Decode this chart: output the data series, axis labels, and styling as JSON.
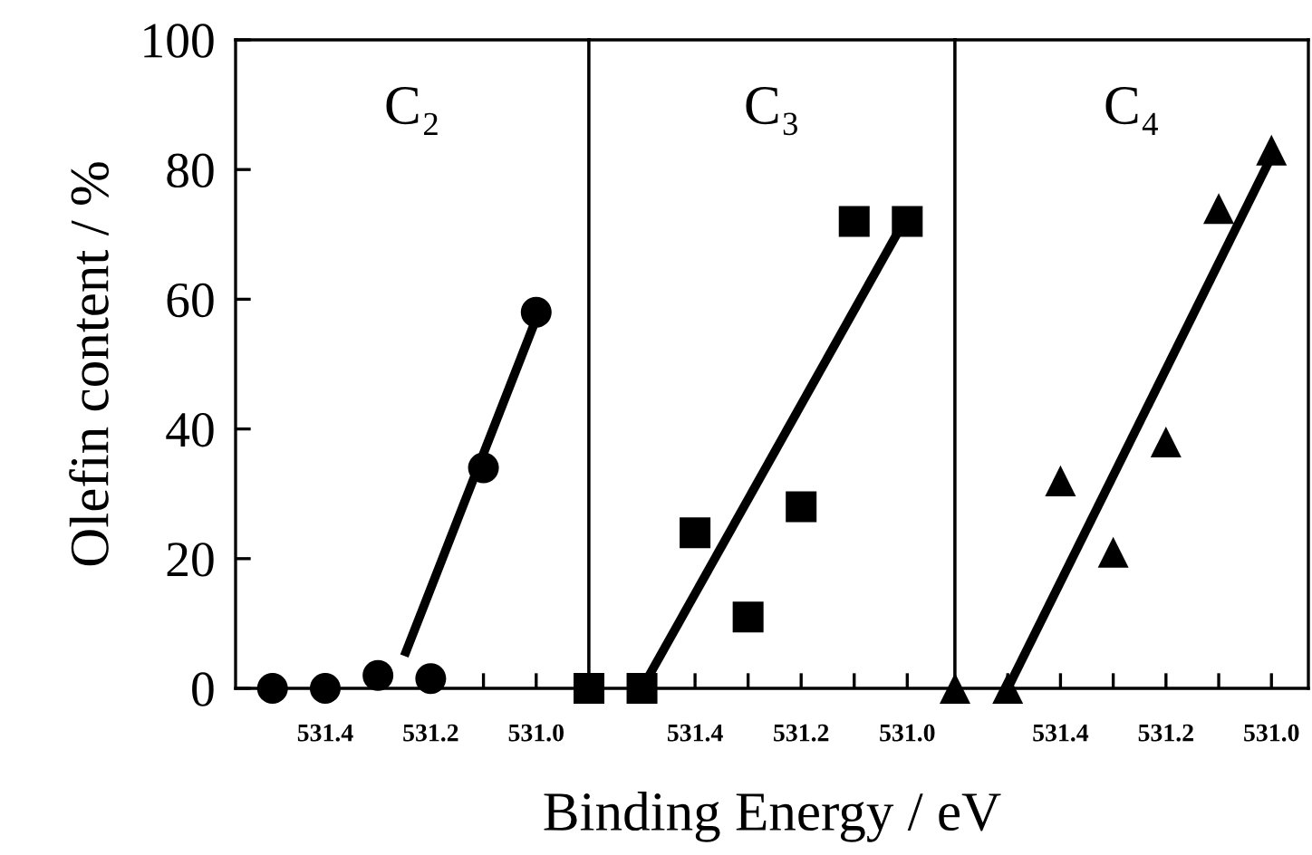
{
  "chart_data": [
    {
      "type": "scatter",
      "title": "C₂",
      "ylabel": "Olefin content / %",
      "xlim": [
        531.57,
        530.9
      ],
      "ylim": [
        0,
        100
      ],
      "xticks": [
        {
          "value": 531.5,
          "label": null
        },
        {
          "value": 531.4,
          "label": "531.4"
        },
        {
          "value": 531.3,
          "label": null
        },
        {
          "value": 531.2,
          "label": "531.2"
        },
        {
          "value": 531.1,
          "label": null
        },
        {
          "value": 531.0,
          "label": "531.0"
        }
      ],
      "yticks": [
        0,
        20,
        40,
        60,
        80,
        100
      ],
      "grid": false,
      "legend": false,
      "series": [
        {
          "marker": "circle",
          "color": "#000000",
          "x": [
            531.5,
            531.4,
            531.3,
            531.2,
            531.1,
            531.0
          ],
          "values": [
            0,
            0,
            2,
            1.5,
            34,
            58
          ]
        },
        {
          "type": "line",
          "line_style": "solid",
          "color": "#000000",
          "x": [
            531.25,
            531.0
          ],
          "values": [
            5,
            57
          ]
        }
      ]
    },
    {
      "type": "scatter",
      "title": "C₃",
      "xlabel": "Binding Energy / eV",
      "xlim": [
        531.6,
        530.91
      ],
      "ylim": [
        0,
        100
      ],
      "tick_labels": "x",
      "xticks": [
        {
          "value": 531.5,
          "label": null
        },
        {
          "value": 531.4,
          "label": "531.4"
        },
        {
          "value": 531.3,
          "label": null
        },
        {
          "value": 531.2,
          "label": "531.2"
        },
        {
          "value": 531.1,
          "label": null
        },
        {
          "value": 531.0,
          "label": "531.0"
        }
      ],
      "grid": false,
      "legend": false,
      "series": [
        {
          "marker": "square",
          "color": "#000000",
          "x": [
            531.6,
            531.5,
            531.4,
            531.3,
            531.2,
            531.1,
            531.0
          ],
          "values": [
            0,
            0,
            24,
            11,
            28,
            72,
            72
          ]
        },
        {
          "type": "line",
          "line_style": "solid",
          "color": "#000000",
          "x": [
            531.5,
            531.02
          ],
          "values": [
            0,
            70
          ]
        }
      ]
    },
    {
      "type": "scatter",
      "title": "C₄",
      "xlim": [
        531.6,
        530.93
      ],
      "ylim": [
        0,
        100
      ],
      "tick_labels": "x",
      "xticks": [
        {
          "value": 531.5,
          "label": null
        },
        {
          "value": 531.4,
          "label": "531.4"
        },
        {
          "value": 531.3,
          "label": null
        },
        {
          "value": 531.2,
          "label": "531.2"
        },
        {
          "value": 531.1,
          "label": null
        },
        {
          "value": 531.0,
          "label": "531.0"
        }
      ],
      "grid": false,
      "legend": false,
      "series": [
        {
          "marker": "triangle",
          "color": "#000000",
          "x": [
            531.6,
            531.5,
            531.4,
            531.3,
            531.2,
            531.1,
            531.0
          ],
          "values": [
            0,
            0,
            32,
            21,
            38,
            74,
            83
          ]
        },
        {
          "type": "line",
          "line_style": "solid",
          "color": "#000000",
          "x": [
            531.5,
            531.0
          ],
          "values": [
            0,
            82
          ]
        }
      ]
    }
  ]
}
